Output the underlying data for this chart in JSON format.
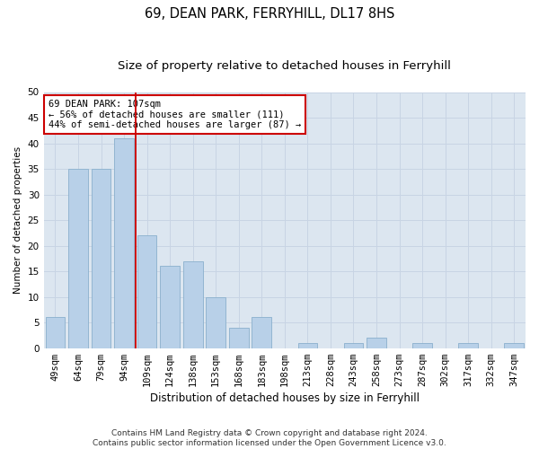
{
  "title": "69, DEAN PARK, FERRYHILL, DL17 8HS",
  "subtitle": "Size of property relative to detached houses in Ferryhill",
  "xlabel": "Distribution of detached houses by size in Ferryhill",
  "ylabel": "Number of detached properties",
  "categories": [
    "49sqm",
    "64sqm",
    "79sqm",
    "94sqm",
    "109sqm",
    "124sqm",
    "138sqm",
    "153sqm",
    "168sqm",
    "183sqm",
    "198sqm",
    "213sqm",
    "228sqm",
    "243sqm",
    "258sqm",
    "273sqm",
    "287sqm",
    "302sqm",
    "317sqm",
    "332sqm",
    "347sqm"
  ],
  "values": [
    6,
    35,
    35,
    41,
    22,
    16,
    17,
    10,
    4,
    6,
    0,
    1,
    0,
    1,
    2,
    0,
    1,
    0,
    1,
    0,
    1
  ],
  "bar_color": "#b8d0e8",
  "bar_edgecolor": "#8ab0cc",
  "vline_color": "#cc0000",
  "annotation_box_text": "69 DEAN PARK: 107sqm\n← 56% of detached houses are smaller (111)\n44% of semi-detached houses are larger (87) →",
  "annotation_box_edgecolor": "#cc0000",
  "annotation_box_facecolor": "white",
  "ylim": [
    0,
    50
  ],
  "yticks": [
    0,
    5,
    10,
    15,
    20,
    25,
    30,
    35,
    40,
    45,
    50
  ],
  "grid_color": "#c8d4e4",
  "background_color": "#dce6f0",
  "footer": "Contains HM Land Registry data © Crown copyright and database right 2024.\nContains public sector information licensed under the Open Government Licence v3.0.",
  "title_fontsize": 10.5,
  "subtitle_fontsize": 9.5,
  "xlabel_fontsize": 8.5,
  "ylabel_fontsize": 7.5,
  "tick_fontsize": 7.5,
  "annot_fontsize": 7.5,
  "footer_fontsize": 6.5
}
